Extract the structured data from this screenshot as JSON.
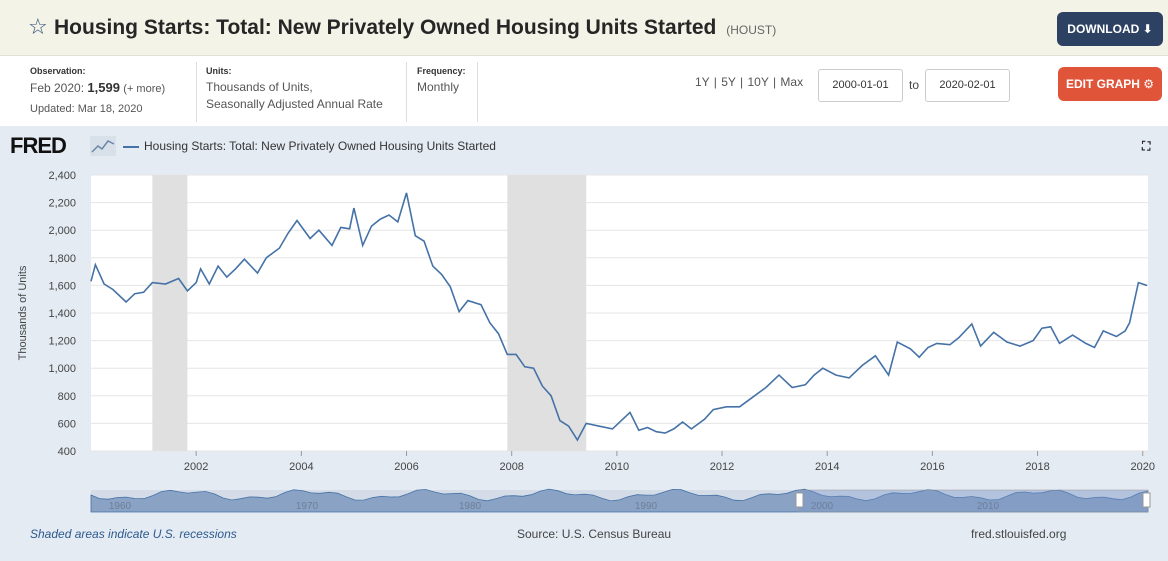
{
  "header": {
    "title": "Housing Starts: Total: New Privately Owned Housing Units Started",
    "series_id": "(HOUST)",
    "download_label": "DOWNLOAD ⬇"
  },
  "meta": {
    "observation_label": "Observation:",
    "observation_date": "Feb 2020:",
    "observation_value": "1,599",
    "observation_more": "(+ more)",
    "updated": "Updated: Mar 18, 2020",
    "units_label": "Units:",
    "units_line1": "Thousands of Units,",
    "units_line2": "Seasonally Adjusted Annual Rate",
    "frequency_label": "Frequency:",
    "frequency_value": "Monthly"
  },
  "controls": {
    "ranges": "1Y | 5Y | 10Y | Max",
    "start_date": "2000-01-01",
    "to_label": "to",
    "end_date": "2020-02-01",
    "edit_label": "EDIT GRAPH ⚙"
  },
  "chart_panel": {
    "logo_text": "FRED",
    "legend_label": "Housing Starts: Total: New Privately Owned Housing Units Started",
    "footnote": "Shaded areas indicate U.S. recessions",
    "source": "Source: U.S. Census Bureau",
    "site": "fred.stlouisfed.org"
  },
  "colors": {
    "line": "#4572a7",
    "recession": "#e0e0e0",
    "accent_download": "#2d4163",
    "accent_edit": "#e0553a"
  },
  "chart_data": {
    "type": "line",
    "ylabel": "Thousands of Units",
    "ylim": [
      400,
      2400
    ],
    "yticks": [
      "400",
      "600",
      "800",
      "1,000",
      "1,200",
      "1,400",
      "1,600",
      "1,800",
      "2,000",
      "2,200",
      "2,400"
    ],
    "xticks": [
      "2002",
      "2004",
      "2006",
      "2008",
      "2010",
      "2012",
      "2014",
      "2016",
      "2018",
      "2020"
    ],
    "navigator_labels": [
      "1960",
      "1970",
      "1980",
      "1990",
      "2000",
      "2010"
    ],
    "recessions": [
      [
        "2001-03",
        "2001-11"
      ],
      [
        "2007-12",
        "2009-06"
      ]
    ],
    "series": [
      {
        "name": "Housing Starts: Total: New Privately Owned Housing Units Started",
        "points": [
          [
            "2000-01",
            1630
          ],
          [
            "2000-02",
            1750
          ],
          [
            "2000-04",
            1610
          ],
          [
            "2000-06",
            1570
          ],
          [
            "2000-09",
            1480
          ],
          [
            "2000-11",
            1540
          ],
          [
            "2001-01",
            1550
          ],
          [
            "2001-03",
            1620
          ],
          [
            "2001-06",
            1610
          ],
          [
            "2001-09",
            1650
          ],
          [
            "2001-11",
            1560
          ],
          [
            "2002-01",
            1620
          ],
          [
            "2002-02",
            1720
          ],
          [
            "2002-04",
            1610
          ],
          [
            "2002-06",
            1740
          ],
          [
            "2002-08",
            1660
          ],
          [
            "2002-10",
            1720
          ],
          [
            "2002-12",
            1790
          ],
          [
            "2003-03",
            1690
          ],
          [
            "2003-05",
            1800
          ],
          [
            "2003-08",
            1870
          ],
          [
            "2003-10",
            1980
          ],
          [
            "2003-12",
            2070
          ],
          [
            "2004-03",
            1940
          ],
          [
            "2004-05",
            2000
          ],
          [
            "2004-08",
            1890
          ],
          [
            "2004-10",
            2020
          ],
          [
            "2004-12",
            2010
          ],
          [
            "2005-01",
            2160
          ],
          [
            "2005-03",
            1890
          ],
          [
            "2005-05",
            2030
          ],
          [
            "2005-07",
            2080
          ],
          [
            "2005-09",
            2110
          ],
          [
            "2005-11",
            2060
          ],
          [
            "2006-01",
            2270
          ],
          [
            "2006-03",
            1960
          ],
          [
            "2006-05",
            1920
          ],
          [
            "2006-07",
            1740
          ],
          [
            "2006-09",
            1680
          ],
          [
            "2006-11",
            1590
          ],
          [
            "2007-01",
            1410
          ],
          [
            "2007-03",
            1490
          ],
          [
            "2007-06",
            1460
          ],
          [
            "2007-08",
            1330
          ],
          [
            "2007-10",
            1250
          ],
          [
            "2007-12",
            1100
          ],
          [
            "2008-02",
            1100
          ],
          [
            "2008-04",
            1010
          ],
          [
            "2008-06",
            1000
          ],
          [
            "2008-08",
            870
          ],
          [
            "2008-10",
            800
          ],
          [
            "2008-12",
            620
          ],
          [
            "2009-02",
            580
          ],
          [
            "2009-04",
            480
          ],
          [
            "2009-06",
            600
          ],
          [
            "2009-09",
            580
          ],
          [
            "2009-12",
            560
          ],
          [
            "2010-02",
            620
          ],
          [
            "2010-04",
            680
          ],
          [
            "2010-06",
            550
          ],
          [
            "2010-08",
            570
          ],
          [
            "2010-10",
            540
          ],
          [
            "2010-12",
            530
          ],
          [
            "2011-02",
            560
          ],
          [
            "2011-04",
            610
          ],
          [
            "2011-06",
            560
          ],
          [
            "2011-09",
            630
          ],
          [
            "2011-11",
            700
          ],
          [
            "2012-02",
            720
          ],
          [
            "2012-05",
            720
          ],
          [
            "2012-08",
            790
          ],
          [
            "2012-11",
            860
          ],
          [
            "2013-02",
            950
          ],
          [
            "2013-05",
            860
          ],
          [
            "2013-08",
            880
          ],
          [
            "2013-10",
            950
          ],
          [
            "2013-12",
            1000
          ],
          [
            "2014-03",
            950
          ],
          [
            "2014-06",
            930
          ],
          [
            "2014-09",
            1020
          ],
          [
            "2014-12",
            1090
          ],
          [
            "2015-03",
            950
          ],
          [
            "2015-05",
            1190
          ],
          [
            "2015-08",
            1140
          ],
          [
            "2015-10",
            1080
          ],
          [
            "2015-12",
            1150
          ],
          [
            "2016-02",
            1180
          ],
          [
            "2016-05",
            1170
          ],
          [
            "2016-07",
            1220
          ],
          [
            "2016-10",
            1320
          ],
          [
            "2016-12",
            1160
          ],
          [
            "2017-03",
            1260
          ],
          [
            "2017-06",
            1190
          ],
          [
            "2017-09",
            1160
          ],
          [
            "2017-12",
            1200
          ],
          [
            "2018-02",
            1290
          ],
          [
            "2018-04",
            1300
          ],
          [
            "2018-06",
            1180
          ],
          [
            "2018-09",
            1240
          ],
          [
            "2018-12",
            1180
          ],
          [
            "2019-02",
            1150
          ],
          [
            "2019-04",
            1270
          ],
          [
            "2019-07",
            1230
          ],
          [
            "2019-09",
            1270
          ],
          [
            "2019-10",
            1330
          ],
          [
            "2019-12",
            1620
          ],
          [
            "2020-01",
            1610
          ],
          [
            "2020-02",
            1599
          ]
        ]
      }
    ]
  }
}
